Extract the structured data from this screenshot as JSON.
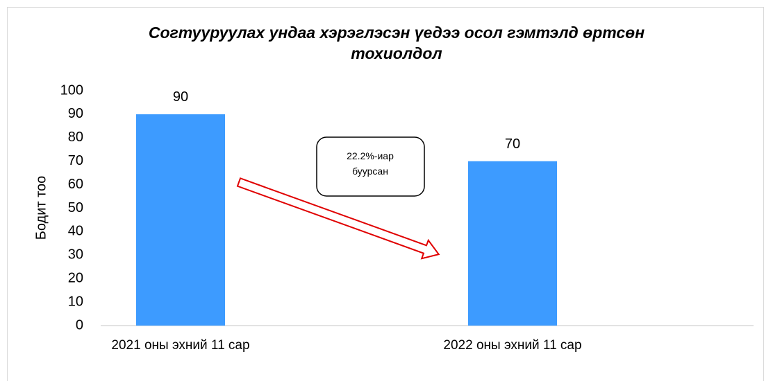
{
  "chart_data": {
    "type": "bar",
    "title": "Согтууруулах ундаа хэрэглэсэн үедээ осол гэмтэлд өртсөн тохиолдол",
    "y_label": "Бодит тоо",
    "categories": [
      "2021 оны эхний 11 сар",
      "2022 оны эхний 11 сар"
    ],
    "values": [
      90,
      70
    ],
    "color": "#3d9bff",
    "ylim": [
      0,
      100
    ],
    "yticks": [
      0,
      10,
      20,
      30,
      40,
      50,
      60,
      70,
      80,
      90,
      100
    ],
    "grid": false,
    "annotation": "22.2%-иар буурсан"
  }
}
